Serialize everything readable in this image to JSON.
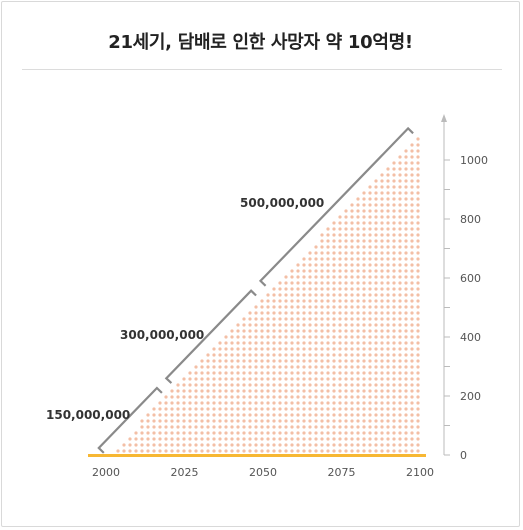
{
  "title": "21세기, 담배로 인한 사망자 약 10억명!",
  "chart_data": {
    "type": "area",
    "x": [
      2000,
      2025,
      2050,
      2075,
      2100
    ],
    "y": [
      0,
      250,
      500,
      750,
      1000
    ],
    "xticks": [
      "2000",
      "2025",
      "2050",
      "2075",
      "2100"
    ],
    "yticks": [
      "0",
      "200",
      "400",
      "600",
      "800",
      "1000"
    ],
    "ylim": [
      0,
      1100
    ],
    "xlim": [
      2000,
      2100
    ],
    "annotations": [
      {
        "label": "150,000,000",
        "from": 2000,
        "to": 2020
      },
      {
        "label": "300,000,000",
        "from": 2020,
        "to": 2050
      },
      {
        "label": "500,000,000",
        "from": 2050,
        "to": 2100
      }
    ],
    "colors": {
      "fill_dots": "#f3bfa6",
      "baseline": "#f7b733",
      "bracket": "#8a8a8a",
      "axis": "#bbbbbb"
    }
  }
}
